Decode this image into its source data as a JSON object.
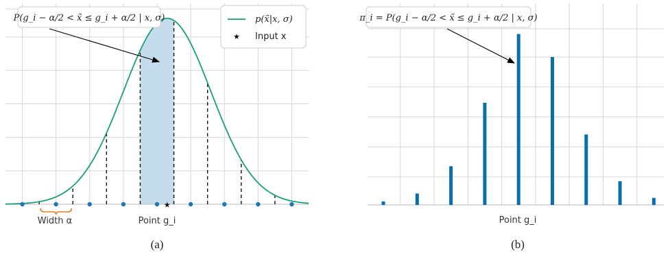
{
  "chart_data": [
    {
      "id": "a",
      "type": "line",
      "caption": "(a)",
      "xlabel": "Point g_i",
      "width_label": "Width α",
      "annotation": "P(g_i − α/2 < x̃ ≤ g_i + α/2 | x, σ)",
      "legend": [
        {
          "name": "p(x̃|x, σ)",
          "kind": "line",
          "color": "#1a9e77"
        },
        {
          "name": "Input x",
          "kind": "star",
          "color": "#000000"
        }
      ],
      "grid_points": [
        -8,
        -6,
        -4,
        -2,
        0,
        2,
        4,
        6,
        8
      ],
      "input_x": 0.6,
      "sigma": 2.6,
      "peak": 1.0,
      "xlim": [
        -9,
        9
      ],
      "ylim": [
        0,
        1.08
      ],
      "cell_width": 2,
      "shaded_cell": [
        -1,
        1
      ],
      "colors": {
        "curve": "#1a9e77",
        "shade": "#c4dcec",
        "points": "#1f77b4",
        "bracket": "#e07b20"
      }
    },
    {
      "id": "b",
      "type": "bar",
      "caption": "(b)",
      "xlabel": "Point g_i",
      "annotation": "π_i = P(g_i − α/2 < x̃ ≤ g_i + α/2 | x, σ)",
      "categories": [
        "-8",
        "-6",
        "-4",
        "-2",
        "0",
        "2",
        "4",
        "6",
        "8"
      ],
      "values": [
        0.02,
        0.065,
        0.22,
        0.58,
        0.97,
        0.84,
        0.4,
        0.135,
        0.04
      ],
      "ylim": [
        0,
        1.0
      ],
      "color": "#0a6fa8"
    }
  ]
}
